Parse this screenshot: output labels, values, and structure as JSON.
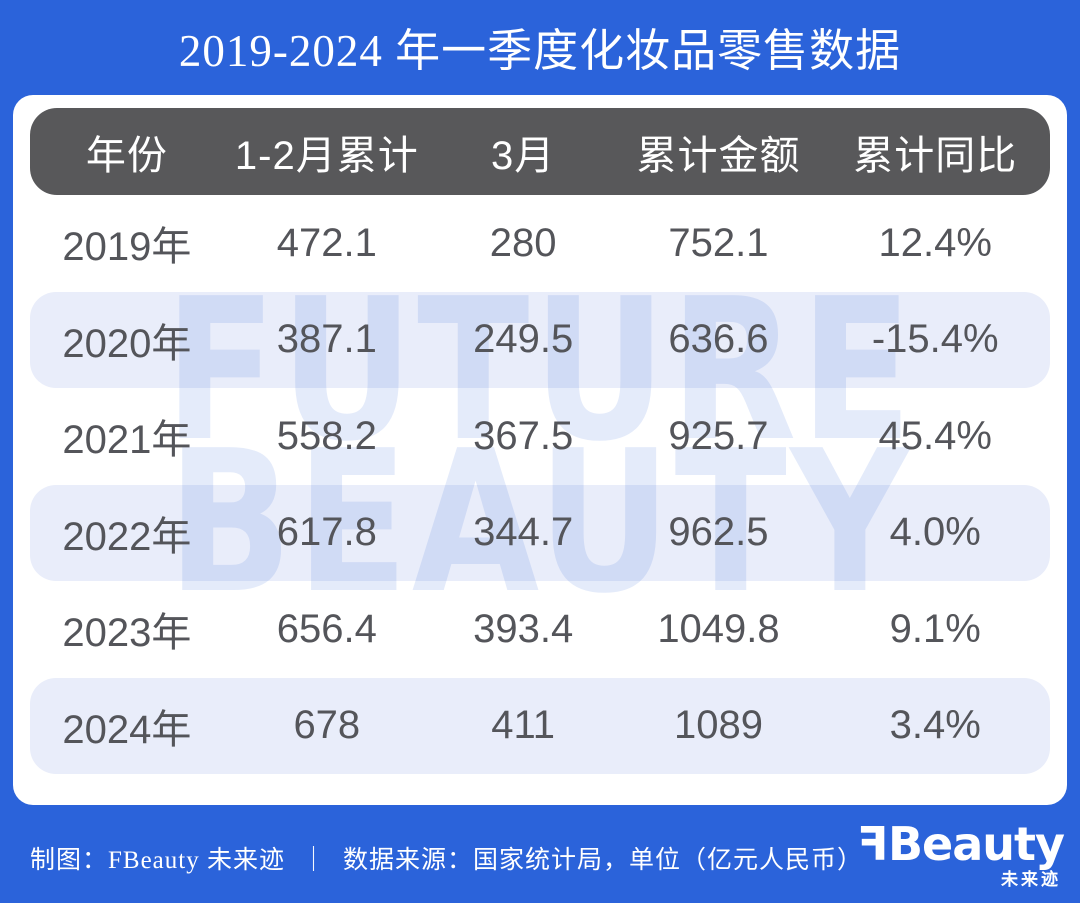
{
  "title": "2019-2024 年一季度化妆品零售数据",
  "watermark": {
    "line1": "FUTURE",
    "line2": "BEAUTY"
  },
  "chart_data": {
    "type": "table",
    "title": "2019-2024 年一季度化妆品零售数据",
    "columns": [
      "年份",
      "1-2月累计",
      "3月",
      "累计金额",
      "累计同比"
    ],
    "rows": [
      [
        "2019年",
        "472.1",
        "280",
        "752.1",
        "12.4%"
      ],
      [
        "2020年",
        "387.1",
        "249.5",
        "636.6",
        "-15.4%"
      ],
      [
        "2021年",
        "558.2",
        "367.5",
        "925.7",
        "45.4%"
      ],
      [
        "2022年",
        "617.8",
        "344.7",
        "962.5",
        "4.0%"
      ],
      [
        "2023年",
        "656.4",
        "393.4",
        "1049.8",
        "9.1%"
      ],
      [
        "2024年",
        "678",
        "411",
        "1089",
        "3.4%"
      ]
    ],
    "unit_note": "单位（亿元人民币）",
    "source_note": "数据来源：国家统计局"
  },
  "footer": {
    "credit": "制图：FBeauty 未来迹",
    "separator": "｜",
    "source": "数据来源：国家统计局，单位（亿元人民币）"
  },
  "logo": {
    "f": "F",
    "rest": "Beauty",
    "sub": "未来迹"
  },
  "colors": {
    "background": "#2B63DA",
    "header_bar": "#58585A",
    "stripe": "#E9EDFA",
    "card": "#FFFFFF",
    "cell_text": "#54555A",
    "watermark": "rgba(43,99,218,0.13)"
  }
}
